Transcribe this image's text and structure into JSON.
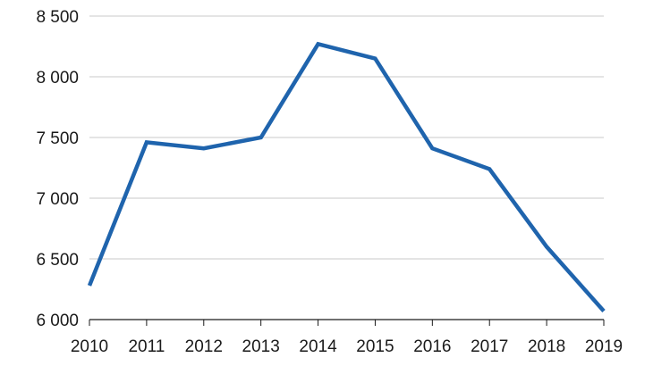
{
  "chart_data": {
    "type": "line",
    "title": "",
    "xlabel": "",
    "ylabel": "",
    "x": [
      "2010",
      "2011",
      "2012",
      "2013",
      "2014",
      "2015",
      "2016",
      "2017",
      "2018",
      "2019"
    ],
    "series": [
      {
        "values": [
          6280,
          7460,
          7410,
          7500,
          8270,
          8150,
          7410,
          7240,
          6600,
          6070
        ],
        "color": "#1f64ad"
      }
    ],
    "ylim": [
      6000,
      8500
    ],
    "yticks": [
      6000,
      6500,
      7000,
      7500,
      8000,
      8500
    ],
    "ytick_labels": [
      "6 000",
      "6 500",
      "7 000",
      "7 500",
      "8 000",
      "8 500"
    ],
    "grid": true,
    "legend": "none"
  }
}
